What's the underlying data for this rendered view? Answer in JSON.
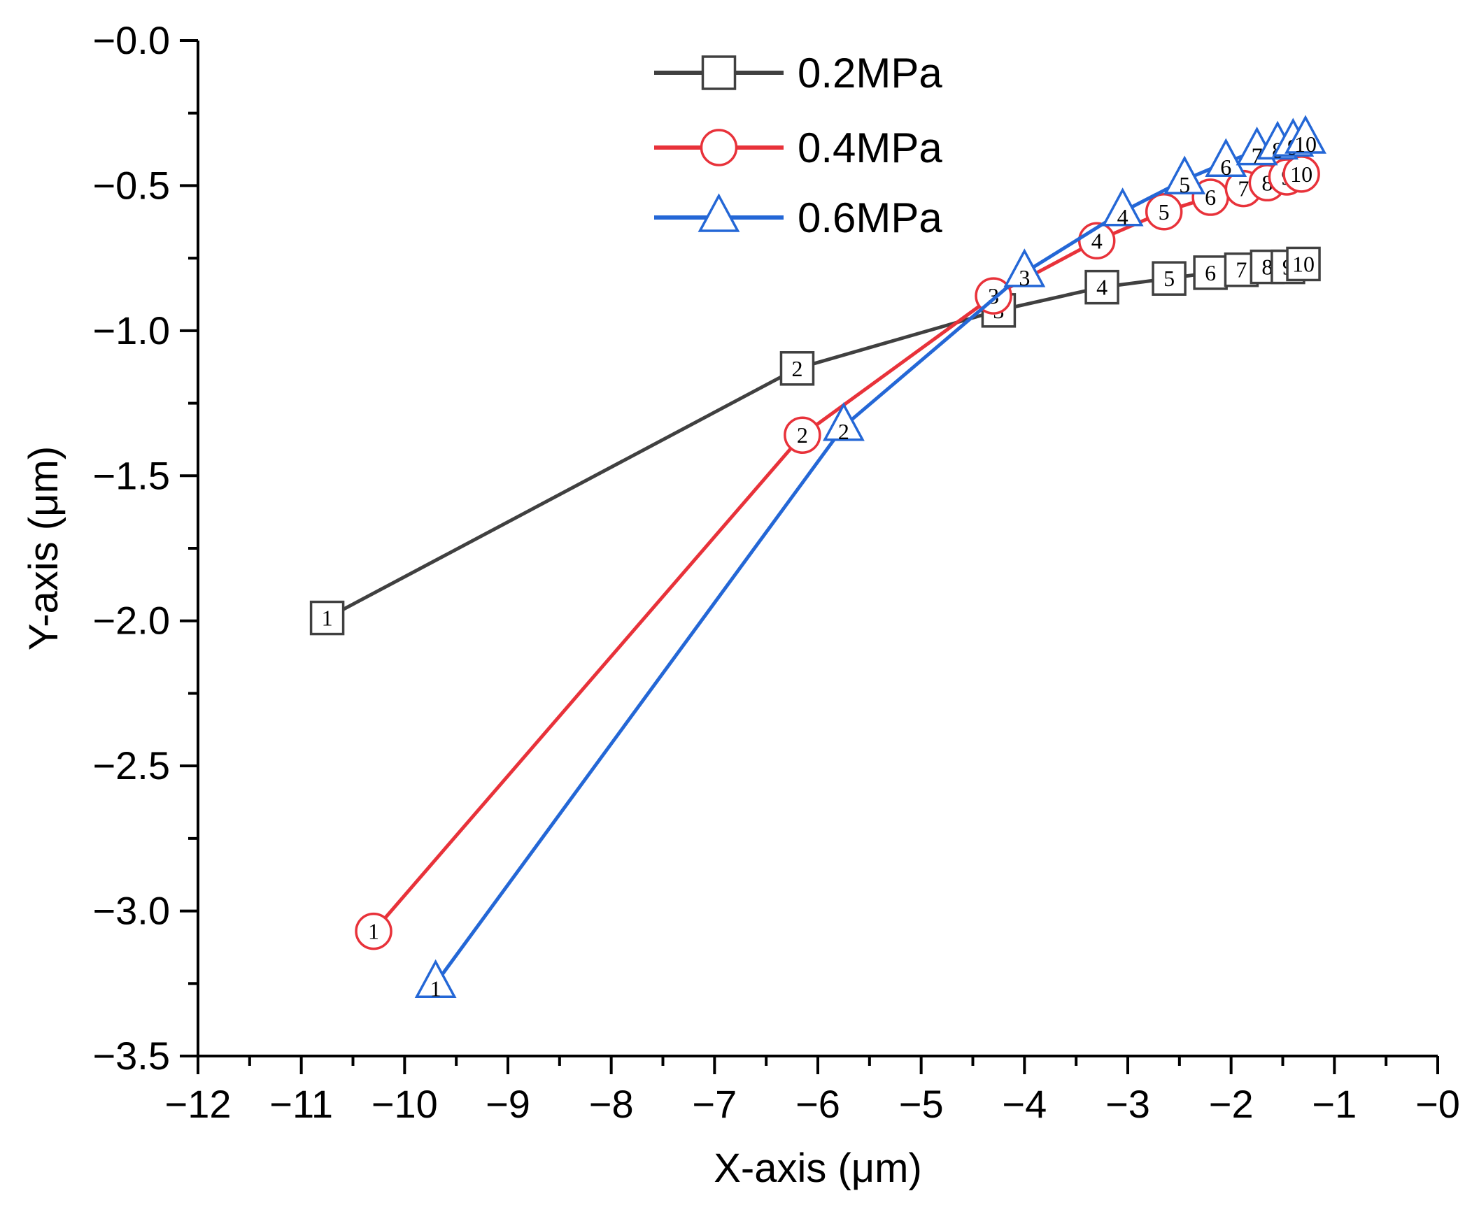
{
  "chart_data": {
    "type": "line",
    "title": "",
    "xlabel": "X-axis (μm)",
    "ylabel": "Y-axis (μm)",
    "xlim": [
      -12,
      0
    ],
    "ylim": [
      -3.5,
      0
    ],
    "x_ticks": [
      -12,
      -11,
      -10,
      -9,
      -8,
      -7,
      -6,
      -5,
      -4,
      -3,
      -2,
      -1,
      0
    ],
    "x_tick_labels": [
      "−12",
      "−11",
      "−10",
      "−9",
      "−8",
      "−7",
      "−6",
      "−5",
      "−4",
      "−3",
      "−2",
      "−1",
      "−0"
    ],
    "y_ticks": [
      0,
      -0.5,
      -1.0,
      -1.5,
      -2.0,
      -2.5,
      -3.0,
      -3.5
    ],
    "y_tick_labels": [
      "−0.0",
      "−0.5",
      "−1.0",
      "−1.5",
      "−2.0",
      "−2.5",
      "−3.0",
      "−3.5"
    ],
    "grid": false,
    "legend_position": "top-center",
    "series": [
      {
        "name": "0.2MPa",
        "color": "#404040",
        "marker": "square",
        "point_labels": [
          "1",
          "2",
          "3",
          "4",
          "5",
          "6",
          "7",
          "8",
          "9",
          "10"
        ],
        "x": [
          -10.75,
          -6.2,
          -4.25,
          -3.25,
          -2.6,
          -2.2,
          -1.9,
          -1.65,
          -1.45,
          -1.3
        ],
        "y": [
          -1.99,
          -1.13,
          -0.93,
          -0.85,
          -0.82,
          -0.8,
          -0.79,
          -0.78,
          -0.78,
          -0.77
        ]
      },
      {
        "name": "0.4MPa",
        "color": "#e8323a",
        "marker": "circle",
        "point_labels": [
          "1",
          "2",
          "3",
          "4",
          "5",
          "6",
          "7",
          "8",
          "9",
          "10"
        ],
        "x": [
          -10.3,
          -6.15,
          -4.3,
          -3.3,
          -2.65,
          -2.2,
          -1.88,
          -1.65,
          -1.46,
          -1.32
        ],
        "y": [
          -3.07,
          -1.36,
          -0.88,
          -0.69,
          -0.59,
          -0.54,
          -0.51,
          -0.49,
          -0.47,
          -0.46
        ]
      },
      {
        "name": "0.6MPa",
        "color": "#2467d6",
        "marker": "triangle",
        "point_labels": [
          "1",
          "2",
          "3",
          "4",
          "5",
          "6",
          "7",
          "8",
          "9",
          "10"
        ],
        "x": [
          -9.7,
          -5.75,
          -4.0,
          -3.05,
          -2.45,
          -2.05,
          -1.75,
          -1.55,
          -1.4,
          -1.28
        ],
        "y": [
          -3.25,
          -1.33,
          -0.8,
          -0.59,
          -0.48,
          -0.42,
          -0.38,
          -0.36,
          -0.35,
          -0.34
        ]
      }
    ]
  }
}
